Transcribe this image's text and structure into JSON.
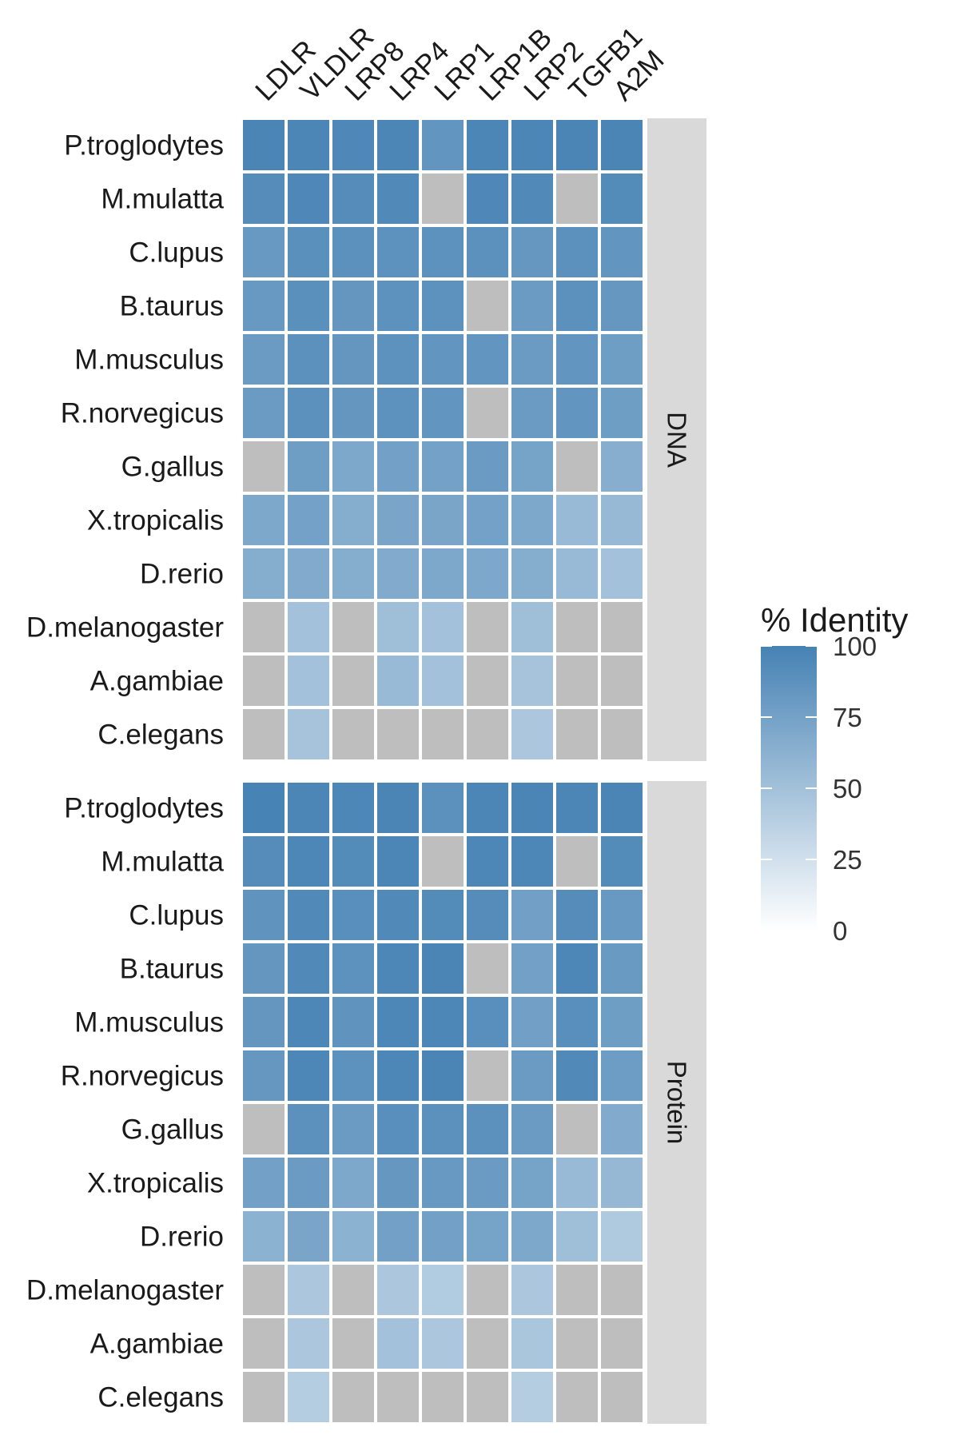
{
  "chart_data": {
    "type": "heatmap",
    "columns": [
      "LDLR",
      "VLDLR",
      "LRP8",
      "LRP4",
      "LRP1",
      "LRP1B",
      "LRP2",
      "TGFB1",
      "A2M"
    ],
    "rows": [
      "P.troglodytes",
      "M.mulatta",
      "C.lupus",
      "B.taurus",
      "M.musculus",
      "R.norvegicus",
      "G.gallus",
      "X.tropicalis",
      "D.rerio",
      "D.melanogaster",
      "A.gambiae",
      "C.elegans"
    ],
    "facets": [
      {
        "name": "DNA",
        "values": [
          [
            98,
            97,
            95,
            97,
            85,
            97,
            97,
            98,
            98
          ],
          [
            92,
            95,
            92,
            94,
            null,
            95,
            94,
            null,
            93
          ],
          [
            82,
            89,
            88,
            87,
            87,
            88,
            83,
            88,
            85
          ],
          [
            82,
            89,
            84,
            87,
            87,
            null,
            80,
            88,
            83
          ],
          [
            80,
            88,
            84,
            87,
            85,
            85,
            80,
            85,
            78
          ],
          [
            80,
            88,
            84,
            87,
            85,
            null,
            80,
            85,
            78
          ],
          [
            null,
            78,
            70,
            76,
            75,
            80,
            74,
            null,
            65
          ],
          [
            70,
            75,
            66,
            72,
            72,
            75,
            70,
            55,
            56
          ],
          [
            66,
            68,
            66,
            68,
            70,
            70,
            66,
            55,
            50
          ],
          [
            null,
            50,
            null,
            52,
            50,
            null,
            52,
            null,
            null
          ],
          [
            null,
            50,
            null,
            55,
            50,
            null,
            48,
            null,
            null
          ],
          [
            null,
            48,
            null,
            null,
            null,
            null,
            45,
            null,
            null
          ]
        ]
      },
      {
        "name": "Protein",
        "values": [
          [
            99,
            97,
            96,
            98,
            88,
            97,
            98,
            97,
            98
          ],
          [
            92,
            96,
            93,
            97,
            null,
            96,
            96,
            null,
            93
          ],
          [
            86,
            94,
            90,
            94,
            93,
            92,
            77,
            92,
            82
          ],
          [
            84,
            94,
            87,
            96,
            98,
            null,
            76,
            96,
            81
          ],
          [
            84,
            96,
            86,
            96,
            96,
            90,
            77,
            90,
            78
          ],
          [
            83,
            96,
            87,
            96,
            98,
            null,
            80,
            94,
            79
          ],
          [
            null,
            88,
            80,
            90,
            88,
            88,
            80,
            null,
            68
          ],
          [
            76,
            80,
            70,
            83,
            82,
            80,
            74,
            55,
            57
          ],
          [
            62,
            72,
            62,
            76,
            76,
            74,
            70,
            52,
            43
          ],
          [
            null,
            45,
            null,
            45,
            42,
            null,
            45,
            null,
            null
          ],
          [
            null,
            45,
            null,
            50,
            45,
            null,
            46,
            null,
            null
          ],
          [
            null,
            40,
            null,
            null,
            null,
            null,
            40,
            null,
            null
          ]
        ]
      }
    ],
    "missing_color": "#bebebe",
    "colorscale": {
      "low": "#ffffff",
      "high": "#4682b4",
      "min": 0,
      "max": 100
    },
    "legend": {
      "title": "% Identity",
      "ticks": [
        0,
        25,
        50,
        75,
        100
      ],
      "position": "right"
    },
    "xlabel": "",
    "ylabel": ""
  }
}
